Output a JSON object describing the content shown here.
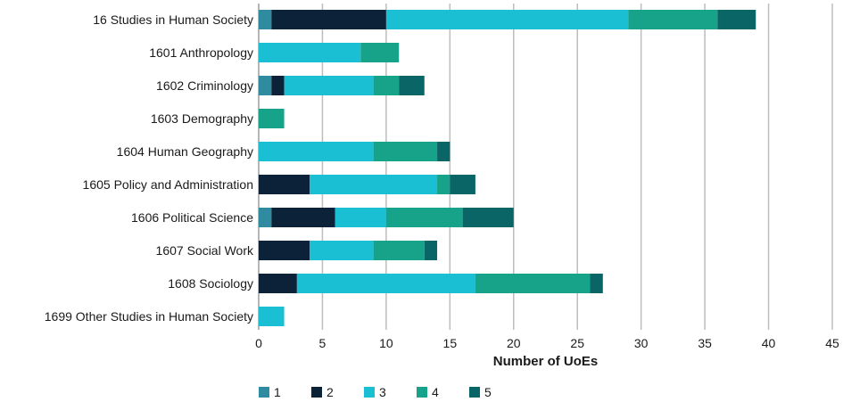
{
  "chart_data": {
    "type": "bar",
    "orientation": "horizontal",
    "stacked": true,
    "title": "",
    "xlabel": "Number of UoEs",
    "ylabel": "",
    "xlim": [
      0,
      45
    ],
    "xticks": [
      0,
      5,
      10,
      15,
      20,
      25,
      30,
      35,
      40,
      45
    ],
    "grid": true,
    "legend_position": "bottom-left",
    "categories": [
      "16 Studies in Human Society",
      "1601 Anthropology",
      "1602 Criminology",
      "1603 Demography",
      "1604 Human Geography",
      "1605 Policy and Administration",
      "1606 Political Science",
      "1607 Social Work",
      "1608 Sociology",
      "1699 Other Studies in Human Society"
    ],
    "series": [
      {
        "name": "1",
        "color": "#2e8ba0",
        "values": [
          1,
          0,
          1,
          0,
          0,
          0,
          1,
          0,
          0,
          0
        ]
      },
      {
        "name": "2",
        "color": "#0b2239",
        "values": [
          9,
          0,
          1,
          0,
          0,
          4,
          5,
          4,
          3,
          0
        ]
      },
      {
        "name": "3",
        "color": "#1bbfd3",
        "values": [
          19,
          8,
          7,
          0,
          9,
          10,
          4,
          5,
          14,
          2
        ]
      },
      {
        "name": "4",
        "color": "#17a38a",
        "values": [
          7,
          3,
          2,
          2,
          5,
          1,
          6,
          4,
          9,
          0
        ]
      },
      {
        "name": "5",
        "color": "#0a6566",
        "values": [
          3,
          0,
          2,
          0,
          1,
          2,
          4,
          1,
          1,
          0
        ]
      }
    ]
  }
}
